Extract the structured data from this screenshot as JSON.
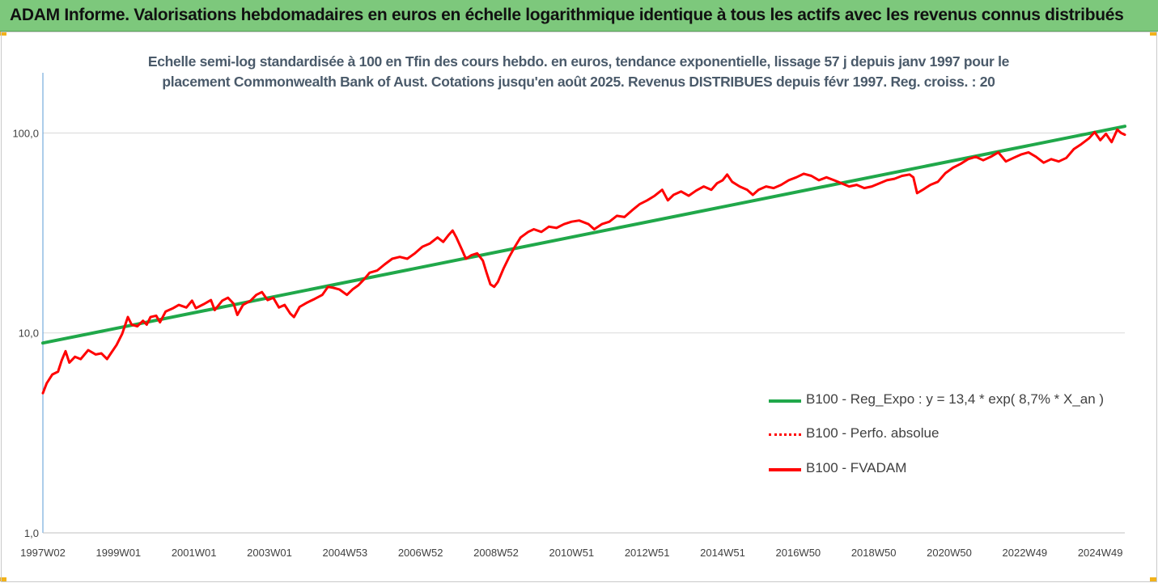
{
  "banner": {
    "title": "ADAM Informe. Valorisations hebdomadaires en euros en échelle logarithmique identique à tous les actifs avec les revenus connus distribués",
    "color": "#7dc87c"
  },
  "chart_data": {
    "type": "line",
    "title_lines": [
      "Echelle semi-log standardisée à 100 en Tfin des cours hebdo. en euros, tendance exponentielle, lissage 57 j depuis janv 1997 pour le",
      "placement Commonwealth Bank of Aust. Cotations jusqu'en août 2025. Revenus DISTRIBUES depuis févr 1997. Reg. croiss. : 20"
    ],
    "y_scale": "log",
    "ylim": [
      1,
      200
    ],
    "y_ticks": [
      1,
      10,
      100
    ],
    "y_tick_labels": [
      "1,0",
      "10,0",
      "100,0"
    ],
    "x_range": [
      1997.0,
      2025.65
    ],
    "x_ticks": [
      {
        "label": "1997W02",
        "year": 1997.0
      },
      {
        "label": "1999W01",
        "year": 1999.0
      },
      {
        "label": "2001W01",
        "year": 2001.0
      },
      {
        "label": "2003W01",
        "year": 2003.0
      },
      {
        "label": "2004W53",
        "year": 2005.0
      },
      {
        "label": "2006W52",
        "year": 2007.0
      },
      {
        "label": "2008W52",
        "year": 2009.0
      },
      {
        "label": "2010W51",
        "year": 2011.0
      },
      {
        "label": "2012W51",
        "year": 2013.0
      },
      {
        "label": "2014W51",
        "year": 2015.0
      },
      {
        "label": "2016W50",
        "year": 2017.0
      },
      {
        "label": "2018W50",
        "year": 2019.0
      },
      {
        "label": "2020W50",
        "year": 2021.0
      },
      {
        "label": "2022W49",
        "year": 2023.0
      },
      {
        "label": "2024W49",
        "year": 2025.0
      }
    ],
    "grid": "horizontal",
    "legend_position": "bottom-right",
    "series": [
      {
        "name": "B100 - Reg_Expo : y = 13,4 * exp( 8,7% *  X_an )",
        "color": "#20a84a",
        "style": "solid",
        "points": [
          [
            1997.0,
            8.9
          ],
          [
            2025.65,
            108.0
          ]
        ]
      },
      {
        "name": "B100 - Perfo. absolue",
        "color": "#ff0000",
        "style": "dotted",
        "points": []
      },
      {
        "name": "B100 - FVADAM",
        "color": "#ff0000",
        "style": "solid",
        "points": [
          [
            1997.0,
            5.0
          ],
          [
            1997.1,
            5.6
          ],
          [
            1997.25,
            6.2
          ],
          [
            1997.4,
            6.4
          ],
          [
            1997.5,
            7.3
          ],
          [
            1997.6,
            8.1
          ],
          [
            1997.7,
            7.1
          ],
          [
            1997.85,
            7.6
          ],
          [
            1998.0,
            7.4
          ],
          [
            1998.2,
            8.2
          ],
          [
            1998.4,
            7.8
          ],
          [
            1998.55,
            7.9
          ],
          [
            1998.7,
            7.4
          ],
          [
            1998.8,
            7.9
          ],
          [
            1998.95,
            8.7
          ],
          [
            1999.1,
            9.9
          ],
          [
            1999.25,
            12.0
          ],
          [
            1999.35,
            11.0
          ],
          [
            1999.5,
            10.8
          ],
          [
            1999.65,
            11.5
          ],
          [
            1999.75,
            11.0
          ],
          [
            1999.85,
            12.0
          ],
          [
            2000.0,
            12.2
          ],
          [
            2000.1,
            11.3
          ],
          [
            2000.25,
            12.8
          ],
          [
            2000.45,
            13.3
          ],
          [
            2000.6,
            13.8
          ],
          [
            2000.8,
            13.4
          ],
          [
            2000.95,
            14.5
          ],
          [
            2001.05,
            13.3
          ],
          [
            2001.25,
            13.9
          ],
          [
            2001.45,
            14.6
          ],
          [
            2001.55,
            13.0
          ],
          [
            2001.75,
            14.5
          ],
          [
            2001.9,
            15.0
          ],
          [
            2002.05,
            14.0
          ],
          [
            2002.15,
            12.3
          ],
          [
            2002.3,
            13.8
          ],
          [
            2002.5,
            14.5
          ],
          [
            2002.65,
            15.5
          ],
          [
            2002.8,
            16.0
          ],
          [
            2002.95,
            14.6
          ],
          [
            2003.1,
            15.0
          ],
          [
            2003.25,
            13.4
          ],
          [
            2003.4,
            13.8
          ],
          [
            2003.55,
            12.5
          ],
          [
            2003.65,
            12.0
          ],
          [
            2003.8,
            13.5
          ],
          [
            2004.0,
            14.2
          ],
          [
            2004.2,
            14.8
          ],
          [
            2004.4,
            15.5
          ],
          [
            2004.55,
            17.0
          ],
          [
            2004.7,
            16.8
          ],
          [
            2004.85,
            16.5
          ],
          [
            2005.05,
            15.5
          ],
          [
            2005.2,
            16.5
          ],
          [
            2005.35,
            17.3
          ],
          [
            2005.5,
            18.5
          ],
          [
            2005.65,
            20.0
          ],
          [
            2005.85,
            20.5
          ],
          [
            2006.05,
            22.0
          ],
          [
            2006.25,
            23.5
          ],
          [
            2006.45,
            24.0
          ],
          [
            2006.65,
            23.5
          ],
          [
            2006.85,
            25.0
          ],
          [
            2007.05,
            27.0
          ],
          [
            2007.25,
            28.0
          ],
          [
            2007.45,
            30.0
          ],
          [
            2007.6,
            28.5
          ],
          [
            2007.75,
            31.0
          ],
          [
            2007.85,
            32.5
          ],
          [
            2007.95,
            30.0
          ],
          [
            2008.1,
            26.0
          ],
          [
            2008.2,
            23.5
          ],
          [
            2008.35,
            24.5
          ],
          [
            2008.5,
            25.0
          ],
          [
            2008.65,
            23.0
          ],
          [
            2008.75,
            20.0
          ],
          [
            2008.85,
            17.5
          ],
          [
            2008.95,
            17.0
          ],
          [
            2009.05,
            18.0
          ],
          [
            2009.2,
            21.0
          ],
          [
            2009.35,
            24.0
          ],
          [
            2009.5,
            27.0
          ],
          [
            2009.65,
            30.0
          ],
          [
            2009.85,
            32.0
          ],
          [
            2010.0,
            33.0
          ],
          [
            2010.2,
            32.0
          ],
          [
            2010.4,
            34.0
          ],
          [
            2010.6,
            33.5
          ],
          [
            2010.8,
            35.0
          ],
          [
            2011.0,
            36.0
          ],
          [
            2011.2,
            36.5
          ],
          [
            2011.45,
            35.0
          ],
          [
            2011.6,
            33.0
          ],
          [
            2011.8,
            35.0
          ],
          [
            2012.0,
            36.0
          ],
          [
            2012.2,
            38.5
          ],
          [
            2012.4,
            38.0
          ],
          [
            2012.6,
            41.0
          ],
          [
            2012.8,
            44.0
          ],
          [
            2013.0,
            46.0
          ],
          [
            2013.2,
            48.5
          ],
          [
            2013.4,
            52.0
          ],
          [
            2013.55,
            46.0
          ],
          [
            2013.7,
            49.0
          ],
          [
            2013.9,
            51.0
          ],
          [
            2014.1,
            48.5
          ],
          [
            2014.3,
            51.5
          ],
          [
            2014.5,
            54.0
          ],
          [
            2014.7,
            52.0
          ],
          [
            2014.85,
            56.0
          ],
          [
            2015.0,
            58.0
          ],
          [
            2015.12,
            62.0
          ],
          [
            2015.25,
            57.0
          ],
          [
            2015.45,
            54.0
          ],
          [
            2015.65,
            52.0
          ],
          [
            2015.8,
            49.0
          ],
          [
            2015.95,
            52.0
          ],
          [
            2016.15,
            54.0
          ],
          [
            2016.35,
            53.0
          ],
          [
            2016.55,
            55.0
          ],
          [
            2016.75,
            58.0
          ],
          [
            2016.95,
            60.0
          ],
          [
            2017.15,
            62.5
          ],
          [
            2017.35,
            61.0
          ],
          [
            2017.55,
            58.0
          ],
          [
            2017.75,
            60.0
          ],
          [
            2017.95,
            58.0
          ],
          [
            2018.15,
            56.0
          ],
          [
            2018.35,
            54.0
          ],
          [
            2018.55,
            55.0
          ],
          [
            2018.75,
            53.0
          ],
          [
            2018.95,
            54.0
          ],
          [
            2019.15,
            56.0
          ],
          [
            2019.35,
            58.0
          ],
          [
            2019.55,
            59.0
          ],
          [
            2019.75,
            61.0
          ],
          [
            2019.95,
            62.0
          ],
          [
            2020.05,
            60.0
          ],
          [
            2020.15,
            50.0
          ],
          [
            2020.3,
            52.0
          ],
          [
            2020.5,
            55.0
          ],
          [
            2020.7,
            57.0
          ],
          [
            2020.9,
            63.0
          ],
          [
            2021.1,
            67.0
          ],
          [
            2021.3,
            70.0
          ],
          [
            2021.5,
            74.0
          ],
          [
            2021.7,
            76.0
          ],
          [
            2021.9,
            73.0
          ],
          [
            2022.1,
            76.0
          ],
          [
            2022.3,
            80.0
          ],
          [
            2022.5,
            72.0
          ],
          [
            2022.7,
            75.0
          ],
          [
            2022.9,
            78.0
          ],
          [
            2023.1,
            80.0
          ],
          [
            2023.3,
            76.0
          ],
          [
            2023.5,
            71.0
          ],
          [
            2023.7,
            74.0
          ],
          [
            2023.9,
            72.0
          ],
          [
            2024.1,
            75.0
          ],
          [
            2024.3,
            83.0
          ],
          [
            2024.5,
            88.0
          ],
          [
            2024.7,
            94.0
          ],
          [
            2024.85,
            101.0
          ],
          [
            2025.0,
            92.0
          ],
          [
            2025.15,
            99.0
          ],
          [
            2025.3,
            90.0
          ],
          [
            2025.45,
            104.0
          ],
          [
            2025.55,
            100.0
          ],
          [
            2025.65,
            98.0
          ]
        ]
      }
    ]
  }
}
